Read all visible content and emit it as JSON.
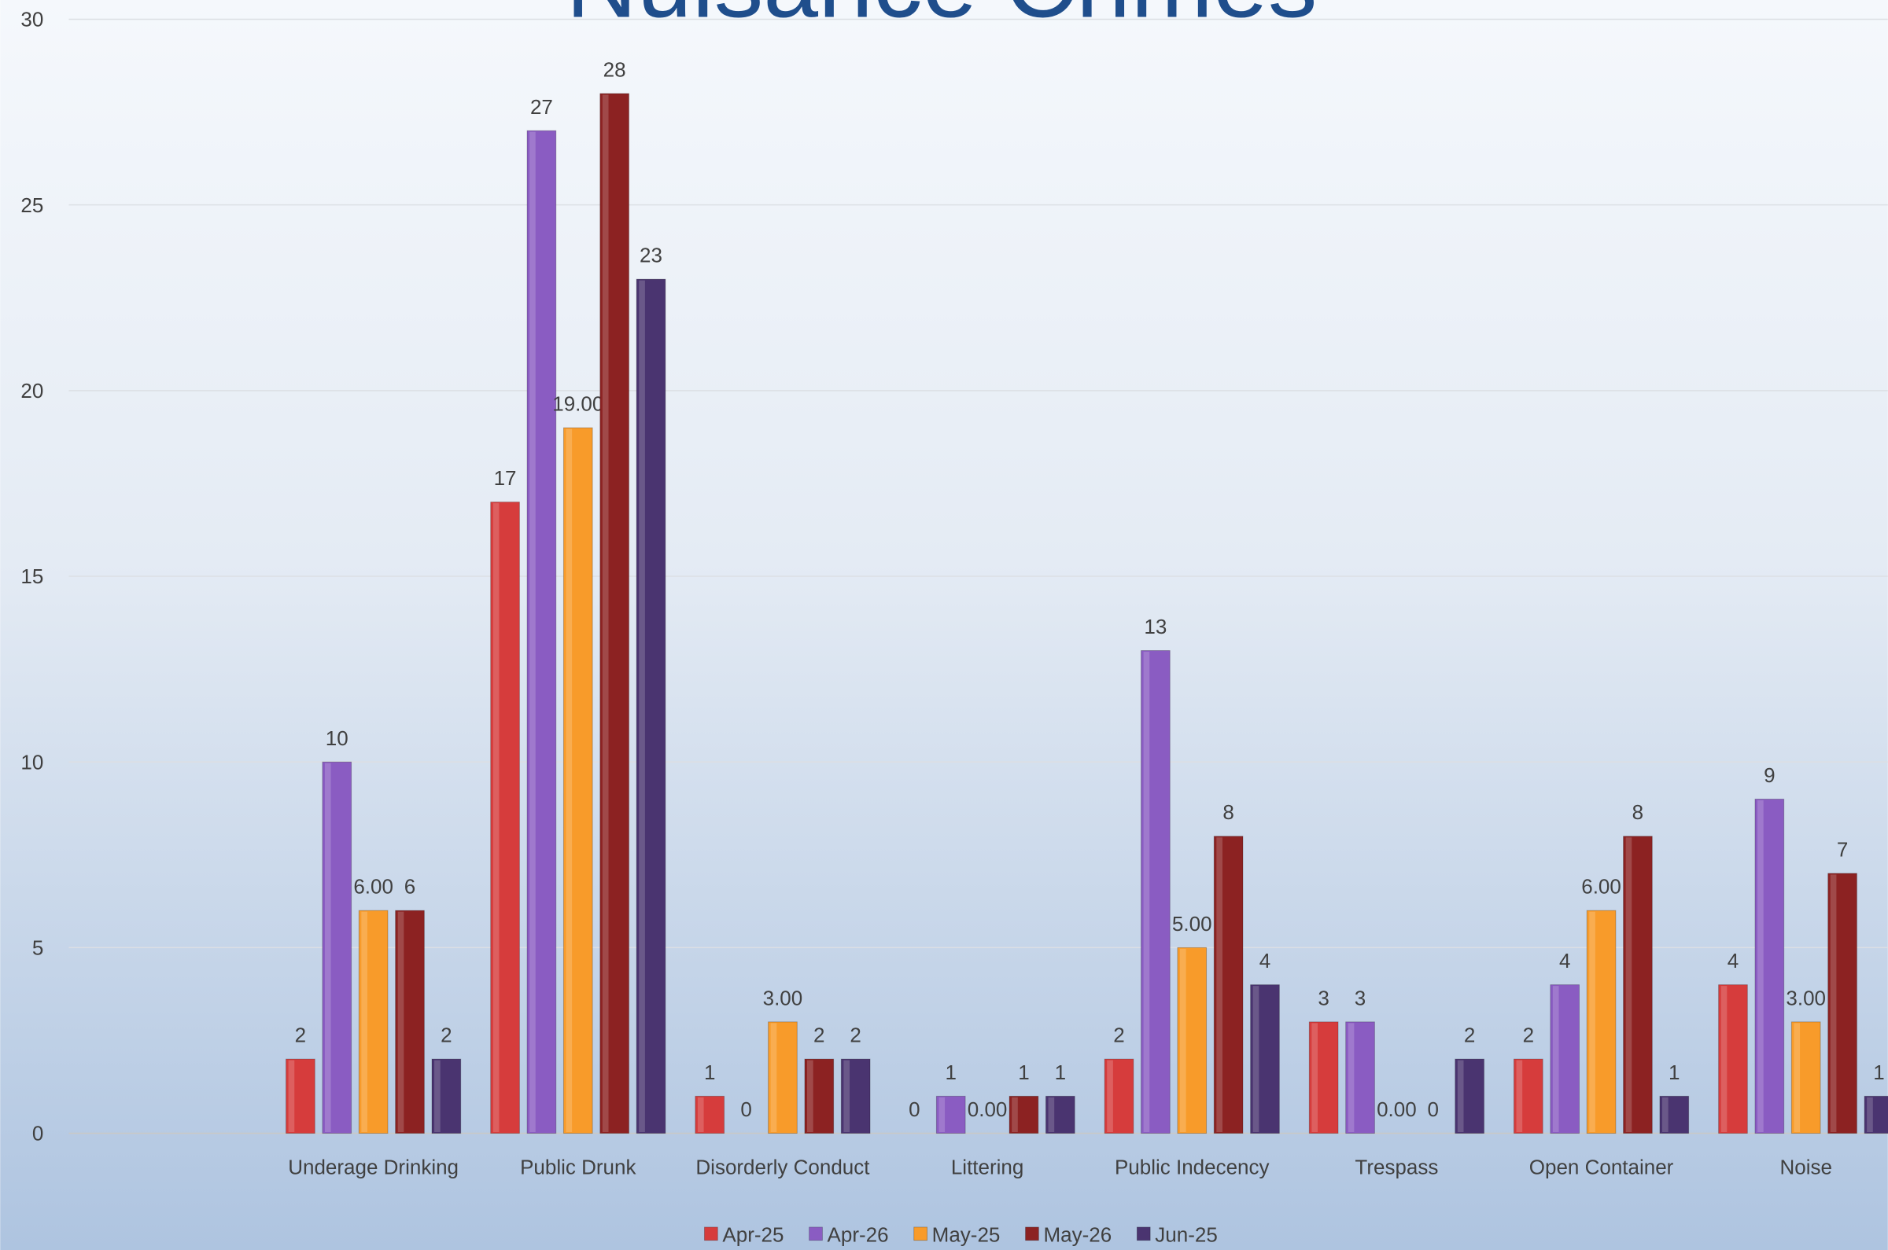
{
  "chart_data": {
    "type": "bar",
    "title": "Nuisance Crimes",
    "categories": [
      null,
      "Underage Drinking",
      "Public Drunk",
      "Disorderly Conduct",
      "Littering",
      "Public Indecency",
      "Trespass",
      "Open Container",
      "Noise"
    ],
    "series": [
      {
        "name": "Apr-25",
        "color": "#d63c3c",
        "values": [
          null,
          2,
          17,
          1,
          0,
          2,
          3,
          2,
          4
        ]
      },
      {
        "name": "Apr-26",
        "color": "#8a5cc2",
        "values": [
          null,
          10,
          27,
          0,
          1,
          13,
          3,
          4,
          9
        ]
      },
      {
        "name": "May-25",
        "color": "#f89b2a",
        "values": [
          null,
          6,
          19,
          3,
          0,
          5,
          0,
          6,
          3
        ],
        "value_labels": [
          null,
          "6.00",
          "19.00",
          "3.00",
          "0.00",
          "5.00",
          "0.00",
          "6.00",
          "3.00"
        ]
      },
      {
        "name": "May-26",
        "color": "#8c2222",
        "values": [
          null,
          6,
          28,
          2,
          1,
          8,
          0,
          8,
          7
        ]
      },
      {
        "name": "Jun-25",
        "color": "#4a3470",
        "values": [
          null,
          2,
          23,
          2,
          1,
          4,
          2,
          1,
          1
        ]
      }
    ],
    "ylim": [
      0,
      30
    ],
    "yticks": [
      0,
      5,
      10,
      15,
      20,
      25,
      30
    ],
    "grid": true,
    "legend": "bottom"
  }
}
